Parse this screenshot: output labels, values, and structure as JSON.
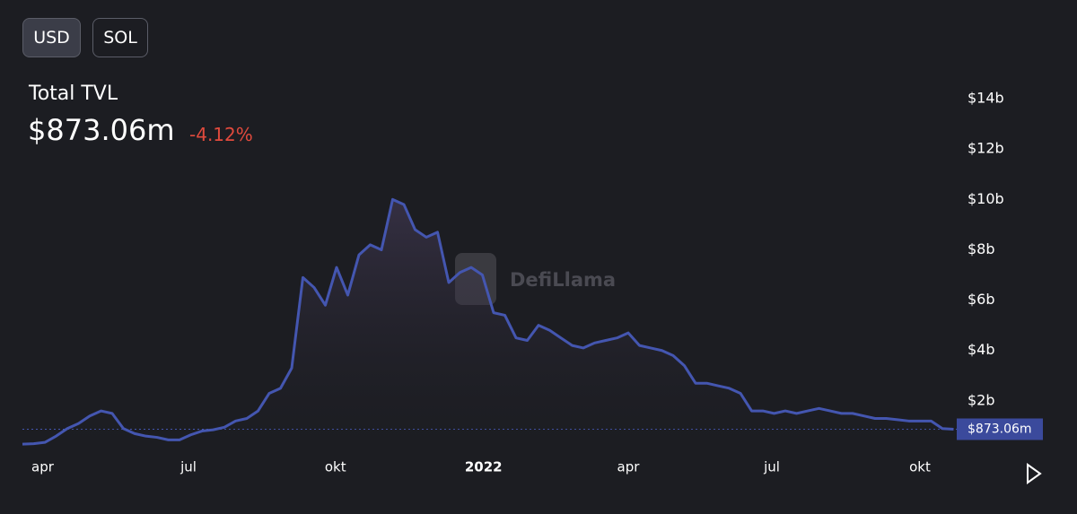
{
  "buttons": [
    "USD",
    "SOL"
  ],
  "header": {
    "title": "Total TVL",
    "value": "$873.06m",
    "change": "-4.12%"
  },
  "chart_data": {
    "type": "line",
    "watermark": "DefiLlama",
    "series": [
      {
        "color": "#4456b0",
        "values": [
          0.28,
          0.3,
          0.35,
          0.6,
          0.9,
          1.1,
          1.4,
          1.6,
          1.5,
          0.9,
          0.7,
          0.6,
          0.55,
          0.45,
          0.45,
          0.65,
          0.8,
          0.85,
          0.95,
          1.2,
          1.3,
          1.6,
          2.3,
          2.5,
          3.3,
          6.9,
          6.5,
          5.8,
          7.3,
          6.2,
          7.8,
          8.2,
          8.0,
          10.0,
          9.8,
          8.8,
          8.5,
          8.7,
          6.7,
          7.1,
          7.3,
          7.0,
          5.5,
          5.4,
          4.5,
          4.4,
          5.0,
          4.8,
          4.5,
          4.2,
          4.1,
          4.3,
          4.4,
          4.5,
          4.7,
          4.2,
          4.1,
          4.0,
          3.8,
          3.4,
          2.7,
          2.7,
          2.6,
          2.5,
          2.3,
          1.6,
          1.6,
          1.5,
          1.6,
          1.5,
          1.6,
          1.7,
          1.6,
          1.5,
          1.5,
          1.4,
          1.3,
          1.3,
          1.25,
          1.2,
          1.2,
          1.2,
          0.9,
          0.873
        ]
      }
    ],
    "xlim": [
      0,
      83
    ],
    "xticks": [
      {
        "value": 1.8,
        "label": "apr"
      },
      {
        "value": 14.8,
        "label": "jul"
      },
      {
        "value": 27.9,
        "label": "okt"
      },
      {
        "value": 41.1,
        "label": "2022"
      },
      {
        "value": 54,
        "label": "apr"
      },
      {
        "value": 66.8,
        "label": "jul"
      },
      {
        "value": 80,
        "label": "okt"
      }
    ],
    "ylim": [
      0,
      15
    ],
    "yticks": [
      {
        "value": 2,
        "label": "$2b"
      },
      {
        "value": 4,
        "label": "$4b"
      },
      {
        "value": 6,
        "label": "$6b"
      },
      {
        "value": 8,
        "label": "$8b"
      },
      {
        "value": 10,
        "label": "$10b"
      },
      {
        "value": 12,
        "label": "$12b"
      },
      {
        "value": 14,
        "label": "$14b"
      }
    ],
    "current_marker": {
      "value": 0.87306,
      "label": "$873.06m"
    }
  }
}
